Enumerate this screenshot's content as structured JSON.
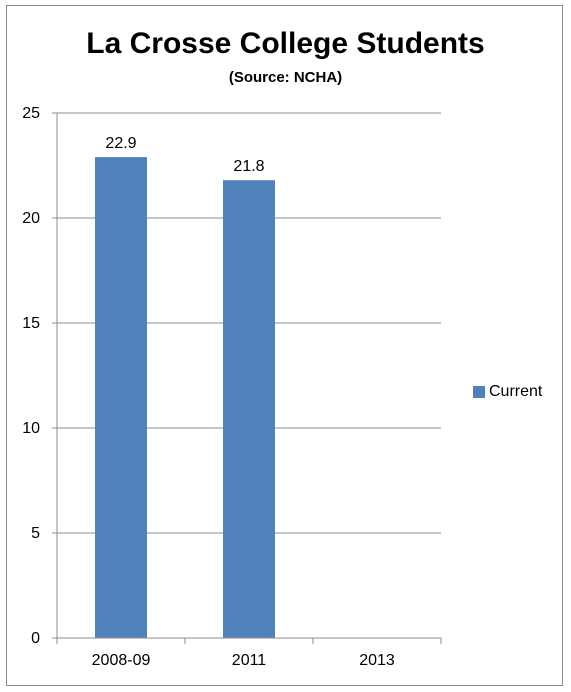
{
  "chart_data": {
    "type": "bar",
    "title": "La Crosse College Students",
    "subtitle": "(Source: NCHA)",
    "xlabel": "",
    "ylabel": "",
    "categories": [
      "2008-09",
      "2011",
      "2013"
    ],
    "series": [
      {
        "name": "Current",
        "values": [
          22.9,
          21.8,
          null
        ],
        "color": "#4f81bd"
      }
    ],
    "data_labels": [
      "22.9",
      "21.8",
      ""
    ],
    "ylim": [
      0,
      25
    ],
    "yticks": [
      0,
      5,
      10,
      15,
      20,
      25
    ],
    "grid": true,
    "legend_position": "right"
  }
}
